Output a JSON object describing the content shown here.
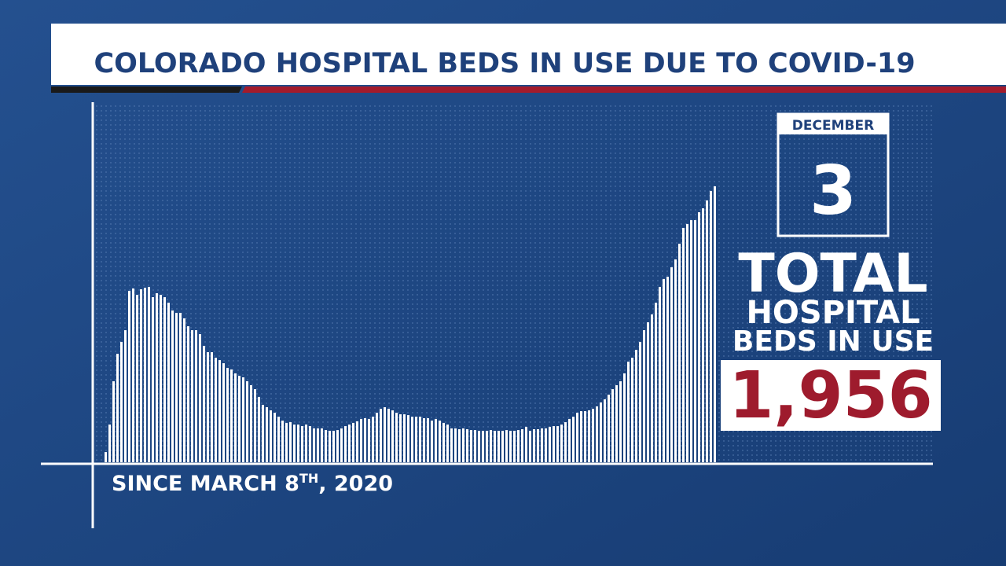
{
  "chart_data": {
    "type": "bar",
    "title": "COLORADO HOSPITAL BEDS IN USE DUE TO COVID-19",
    "since_label": [
      "SINCE MARCH 8",
      "TH",
      ", 2020"
    ],
    "date_month": "DECEMBER",
    "date_day": "3",
    "total_label": [
      "TOTAL",
      "HOSPITAL",
      "BEDS IN USE"
    ],
    "total_value": "1,956",
    "color": "#ffffff",
    "values": [
      72,
      267,
      574,
      769,
      853,
      936,
      1215,
      1232,
      1187,
      1226,
      1237,
      1243,
      1170,
      1198,
      1187,
      1170,
      1131,
      1076,
      1059,
      1059,
      1020,
      964,
      936,
      936,
      908,
      825,
      780,
      780,
      741,
      724,
      702,
      669,
      658,
      630,
      613,
      602,
      574,
      546,
      518,
      463,
      407,
      390,
      368,
      351,
      323,
      295,
      279,
      284,
      267,
      267,
      256,
      267,
      256,
      240,
      240,
      240,
      228,
      223,
      223,
      228,
      240,
      256,
      267,
      279,
      290,
      307,
      312,
      307,
      323,
      351,
      379,
      390,
      379,
      368,
      351,
      340,
      340,
      334,
      323,
      323,
      323,
      312,
      312,
      295,
      307,
      295,
      279,
      267,
      240,
      240,
      234,
      240,
      234,
      228,
      228,
      223,
      223,
      223,
      228,
      223,
      223,
      223,
      228,
      223,
      223,
      228,
      234,
      251,
      223,
      234,
      234,
      240,
      240,
      251,
      256,
      256,
      267,
      284,
      307,
      323,
      351,
      362,
      362,
      368,
      379,
      396,
      424,
      446,
      479,
      518,
      546,
      574,
      630,
      713,
      741,
      797,
      853,
      936,
      992,
      1048,
      1131,
      1243,
      1299,
      1315,
      1382,
      1438,
      1549,
      1661,
      1689,
      1716,
      1716,
      1772,
      1800,
      1856,
      1923,
      1956
    ]
  }
}
